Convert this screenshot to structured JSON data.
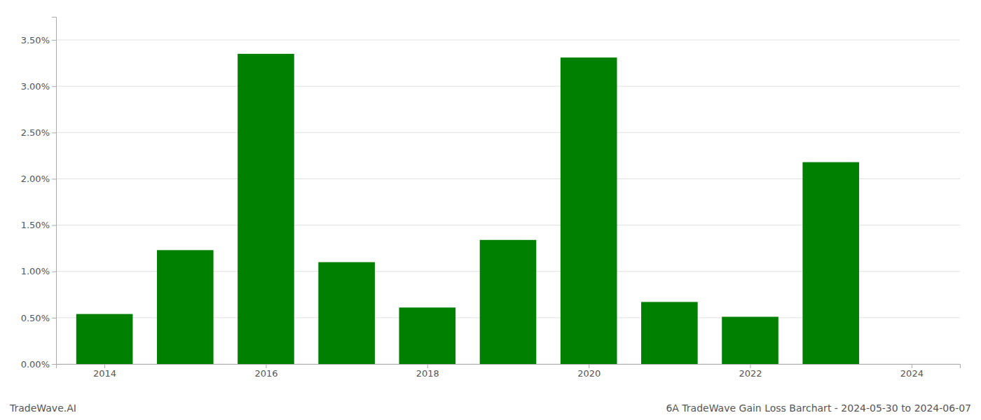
{
  "chart_data": {
    "type": "bar",
    "title": "6A TradeWave Gain Loss Barchart - 2024-05-30 to 2024-06-07",
    "annotations": [
      "TradeWave.AI"
    ],
    "x": [
      2014,
      2015,
      2016,
      2017,
      2018,
      2019,
      2020,
      2021,
      2022,
      2023,
      2024
    ],
    "values": [
      0.0054,
      0.0123,
      0.0335,
      0.011,
      0.0061,
      0.0134,
      0.0331,
      0.0067,
      0.0051,
      0.0218,
      0.0
    ],
    "color": "#008000",
    "xlim": [
      2013.4,
      2024.6
    ],
    "xticks": [
      2014,
      2016,
      2018,
      2020,
      2022,
      2024
    ],
    "ylim": [
      0.0,
      0.0375
    ],
    "yticks": [
      {
        "value": 0.0,
        "label": "0.00%"
      },
      {
        "value": 0.005,
        "label": "0.50%"
      },
      {
        "value": 0.01,
        "label": "1.00%"
      },
      {
        "value": 0.015,
        "label": "1.50%"
      },
      {
        "value": 0.02,
        "label": "2.00%"
      },
      {
        "value": 0.025,
        "label": "2.50%"
      },
      {
        "value": 0.03,
        "label": "3.00%"
      },
      {
        "value": 0.035,
        "label": "3.50%"
      }
    ],
    "grid": true
  }
}
